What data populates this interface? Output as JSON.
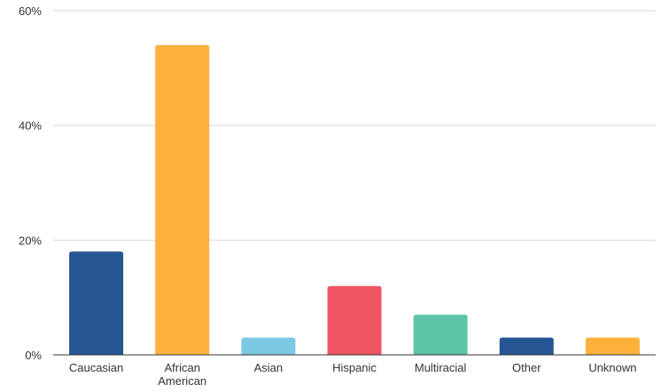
{
  "chart_data": {
    "type": "bar",
    "title": "",
    "xlabel": "",
    "ylabel": "",
    "categories": [
      "Caucasian",
      "African American",
      "Asian",
      "Hispanic",
      "Multiracial",
      "Other",
      "Unknown"
    ],
    "category_lines": [
      [
        "Caucasian"
      ],
      [
        "African",
        "American"
      ],
      [
        "Asian"
      ],
      [
        "Hispanic"
      ],
      [
        "Multiracial"
      ],
      [
        "Other"
      ],
      [
        "Unknown"
      ]
    ],
    "values": [
      18,
      54,
      3,
      12,
      7,
      3,
      3
    ],
    "colors": [
      "#255593",
      "#fbb13b",
      "#7bc8e2",
      "#ef5663",
      "#5ec4a8",
      "#255593",
      "#fbb13b"
    ],
    "ylim": [
      0,
      60
    ],
    "y_ticks": [
      0,
      20,
      40,
      60
    ],
    "y_tick_labels": [
      "0%",
      "20%",
      "40%",
      "60%"
    ],
    "unit": "%",
    "grid": true,
    "legend": "none"
  }
}
